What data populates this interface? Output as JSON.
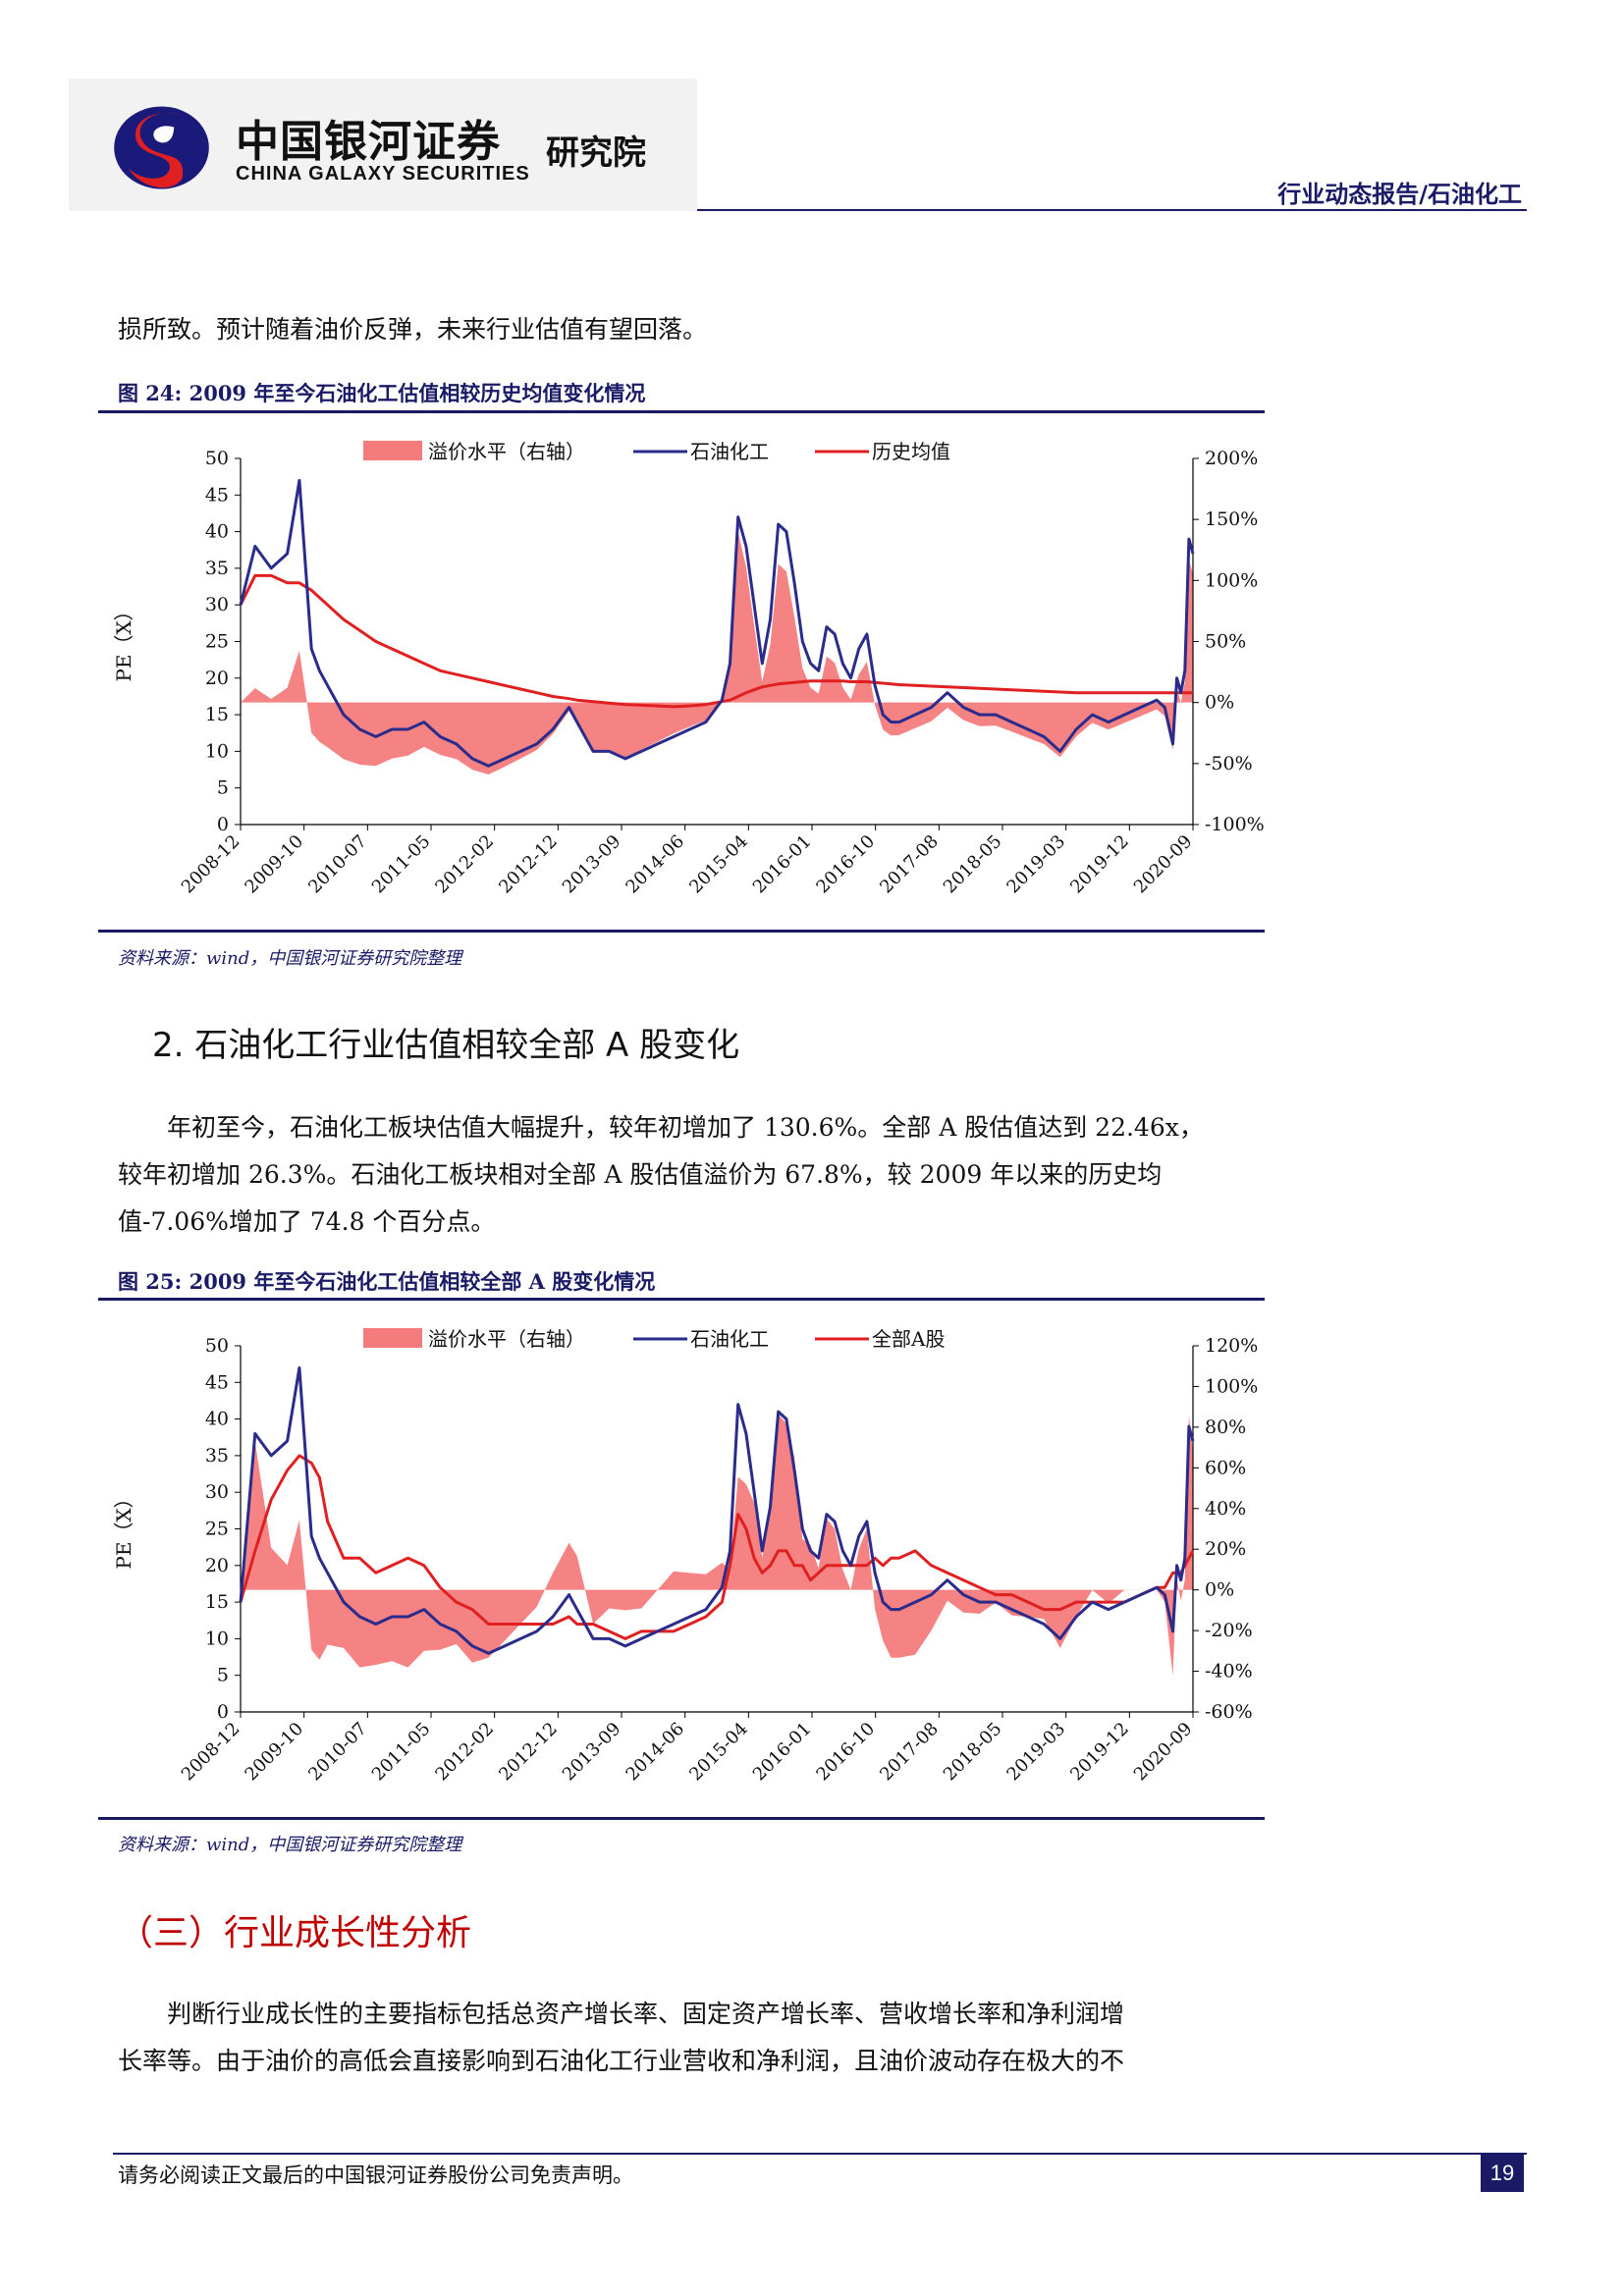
{
  "header": {
    "company_cn": "中国银河证券",
    "company_en": "CHINA GALAXY SECURITIES",
    "institute": "研究院",
    "report_type": "行业动态报告/石油化工"
  },
  "intro_text": "损所致。预计随着油价反弹，未来行业估值有望回落。",
  "figure24": {
    "caption": "图 24:  2009 年至今石油化工估值相较历史均值变化情况",
    "source": "资料来源：wind，中国银河证券研究院整理"
  },
  "section2": {
    "title": "2. 石油化工行业估值相较全部 A 股变化",
    "lines": [
      "年初至今，石油化工板块估值大幅提升，较年初增加了 130.6%。全部 A 股估值达到 22.46x，",
      "较年初增加 26.3%。石油化工板块相对全部 A 股估值溢价为 67.8%，较 2009 年以来的历史均",
      "值-7.06%增加了 74.8 个百分点。"
    ]
  },
  "figure25": {
    "caption": "图 25:  2009 年至今石油化工估值相较全部 A 股变化情况",
    "source": "资料来源：wind，中国银河证券研究院整理"
  },
  "section3": {
    "title": "（三）行业成长性分析",
    "lines": [
      "判断行业成长性的主要指标包括总资产增长率、固定资产增长率、营收增长率和净利润增",
      "长率等。由于油价的高低会直接影响到石油化工行业营收和净利润，且油价波动存在极大的不"
    ]
  },
  "footer": {
    "disclaimer": "请务必阅读正文最后的中国银河证券股份公司免责声明。",
    "page": "19"
  },
  "chart_data": [
    {
      "type": "line",
      "id": "fig24",
      "ylabel": "PE（X）",
      "ylim": [
        0,
        50
      ],
      "yticks": [
        "0",
        "5",
        "10",
        "15",
        "20",
        "25",
        "30",
        "35",
        "40",
        "45",
        "50"
      ],
      "y2lim": [
        -100,
        200
      ],
      "y2ticks": [
        "-100%",
        "-50%",
        "0%",
        "50%",
        "100%",
        "150%",
        "200%"
      ],
      "x_tick_labels": [
        "2008-12",
        "2009-10",
        "2010-07",
        "2011-05",
        "2012-02",
        "2012-12",
        "2013-09",
        "2014-06",
        "2015-04",
        "2016-01",
        "2016-10",
        "2017-08",
        "2018-05",
        "2019-03",
        "2019-12",
        "2020-09"
      ],
      "legend": [
        "溢价水平（右轴）",
        "石油化工",
        "历史均值"
      ],
      "colors": {
        "premium": "#f47c7c",
        "petro": "#2b2b8c",
        "mean": "#e02020"
      },
      "x": [
        2008.92,
        2009.1,
        2009.3,
        2009.5,
        2009.65,
        2009.8,
        2009.9,
        2010.0,
        2010.2,
        2010.4,
        2010.6,
        2010.8,
        2011.0,
        2011.2,
        2011.4,
        2011.6,
        2011.8,
        2012.0,
        2012.2,
        2012.4,
        2012.6,
        2012.8,
        2013.0,
        2013.1,
        2013.3,
        2013.5,
        2013.7,
        2013.9,
        2014.1,
        2014.3,
        2014.5,
        2014.7,
        2014.9,
        2015.0,
        2015.1,
        2015.2,
        2015.3,
        2015.4,
        2015.5,
        2015.6,
        2015.7,
        2015.8,
        2015.9,
        2016.0,
        2016.1,
        2016.2,
        2016.3,
        2016.4,
        2016.5,
        2016.6,
        2016.7,
        2016.8,
        2016.9,
        2017.0,
        2017.1,
        2017.3,
        2017.5,
        2017.7,
        2017.9,
        2018.1,
        2018.3,
        2018.5,
        2018.7,
        2018.9,
        2019.1,
        2019.3,
        2019.5,
        2019.7,
        2019.9,
        2020.1,
        2020.3,
        2020.4,
        2020.5,
        2020.55,
        2020.6,
        2020.65,
        2020.7,
        2020.75
      ],
      "petro": [
        30,
        38,
        35,
        37,
        47,
        24,
        21,
        19,
        15,
        13,
        12,
        13,
        13,
        14,
        12,
        11,
        9,
        8,
        9,
        10,
        11,
        13,
        16,
        14,
        10,
        10,
        9,
        10,
        11,
        12,
        13,
        14,
        17,
        22,
        42,
        38,
        30,
        22,
        28,
        41,
        40,
        33,
        25,
        22,
        21,
        27,
        26,
        22,
        20,
        24,
        26,
        19,
        15,
        14,
        14,
        15,
        16,
        18,
        16,
        15,
        15,
        14,
        13,
        12,
        10,
        13,
        15,
        14,
        15,
        16,
        17,
        16,
        11,
        20,
        18,
        21,
        39,
        37
      ],
      "mean": [
        30,
        34,
        34,
        33,
        33,
        32,
        31,
        30,
        28,
        26.5,
        25,
        24,
        23,
        22,
        21,
        20.5,
        20,
        19.5,
        19,
        18.5,
        18,
        17.5,
        17.2,
        17,
        16.8,
        16.6,
        16.4,
        16.3,
        16.2,
        16.1,
        16.2,
        16.4,
        16.8,
        17,
        17.5,
        18,
        18.4,
        18.8,
        19,
        19.2,
        19.3,
        19.4,
        19.5,
        19.6,
        19.6,
        19.6,
        19.6,
        19.6,
        19.5,
        19.5,
        19.5,
        19.4,
        19.3,
        19.2,
        19.1,
        19,
        18.9,
        18.8,
        18.7,
        18.6,
        18.5,
        18.4,
        18.3,
        18.2,
        18.1,
        18,
        18,
        18,
        18,
        18,
        18,
        18,
        18,
        18,
        18,
        18,
        18,
        18
      ]
    },
    {
      "type": "line",
      "id": "fig25",
      "ylabel": "PE（X）",
      "ylim": [
        0,
        50
      ],
      "yticks": [
        "0",
        "5",
        "10",
        "15",
        "20",
        "25",
        "30",
        "35",
        "40",
        "45",
        "50"
      ],
      "y2lim": [
        -60,
        120
      ],
      "y2ticks": [
        "-60%",
        "-40%",
        "-20%",
        "0%",
        "20%",
        "40%",
        "60%",
        "80%",
        "100%",
        "120%"
      ],
      "x_tick_labels": [
        "2008-12",
        "2009-10",
        "2010-07",
        "2011-05",
        "2012-02",
        "2012-12",
        "2013-09",
        "2014-06",
        "2015-04",
        "2016-01",
        "2016-10",
        "2017-08",
        "2018-05",
        "2019-03",
        "2019-12",
        "2020-09"
      ],
      "legend": [
        "溢价水平（右轴）",
        "石油化工",
        "全部A股"
      ],
      "colors": {
        "premium": "#f47c7c",
        "petro": "#2b2b8c",
        "all_a": "#e02020"
      },
      "x": [
        2008.92,
        2009.1,
        2009.3,
        2009.5,
        2009.65,
        2009.8,
        2009.9,
        2010.0,
        2010.2,
        2010.4,
        2010.6,
        2010.8,
        2011.0,
        2011.2,
        2011.4,
        2011.6,
        2011.8,
        2012.0,
        2012.2,
        2012.4,
        2012.6,
        2012.8,
        2013.0,
        2013.1,
        2013.3,
        2013.5,
        2013.7,
        2013.9,
        2014.1,
        2014.3,
        2014.5,
        2014.7,
        2014.9,
        2015.0,
        2015.1,
        2015.2,
        2015.3,
        2015.4,
        2015.5,
        2015.6,
        2015.7,
        2015.8,
        2015.9,
        2016.0,
        2016.1,
        2016.2,
        2016.3,
        2016.4,
        2016.5,
        2016.6,
        2016.7,
        2016.8,
        2016.9,
        2017.0,
        2017.1,
        2017.3,
        2017.5,
        2017.7,
        2017.9,
        2018.1,
        2018.3,
        2018.5,
        2018.7,
        2018.9,
        2019.1,
        2019.3,
        2019.5,
        2019.7,
        2019.9,
        2020.1,
        2020.3,
        2020.4,
        2020.5,
        2020.55,
        2020.6,
        2020.65,
        2020.7,
        2020.75
      ],
      "petro": [
        15,
        38,
        35,
        37,
        47,
        24,
        21,
        19,
        15,
        13,
        12,
        13,
        13,
        14,
        12,
        11,
        9,
        8,
        9,
        10,
        11,
        13,
        16,
        14,
        10,
        10,
        9,
        10,
        11,
        12,
        13,
        14,
        17,
        22,
        42,
        38,
        30,
        22,
        28,
        41,
        40,
        33,
        25,
        22,
        21,
        27,
        26,
        22,
        20,
        24,
        26,
        19,
        15,
        14,
        14,
        15,
        16,
        18,
        16,
        15,
        15,
        14,
        13,
        12,
        10,
        13,
        15,
        14,
        15,
        16,
        17,
        16,
        11,
        20,
        18,
        21,
        39,
        37
      ],
      "all_a": [
        15,
        22,
        29,
        33,
        35,
        34,
        32,
        26,
        21,
        21,
        19,
        20,
        21,
        20,
        17,
        15,
        14,
        12,
        12,
        12,
        12,
        12,
        13,
        12,
        12,
        11,
        10,
        11,
        11,
        11,
        12,
        13,
        15,
        20,
        27,
        25,
        21,
        19,
        20,
        22,
        22,
        20,
        20,
        18,
        19,
        20,
        20,
        20,
        20,
        20,
        20,
        21,
        20,
        21,
        21,
        22,
        20,
        19,
        18,
        17,
        16,
        16,
        15,
        14,
        14,
        15,
        15,
        15,
        15,
        16,
        17,
        17,
        19,
        19,
        19,
        20,
        21,
        22
      ]
    }
  ]
}
